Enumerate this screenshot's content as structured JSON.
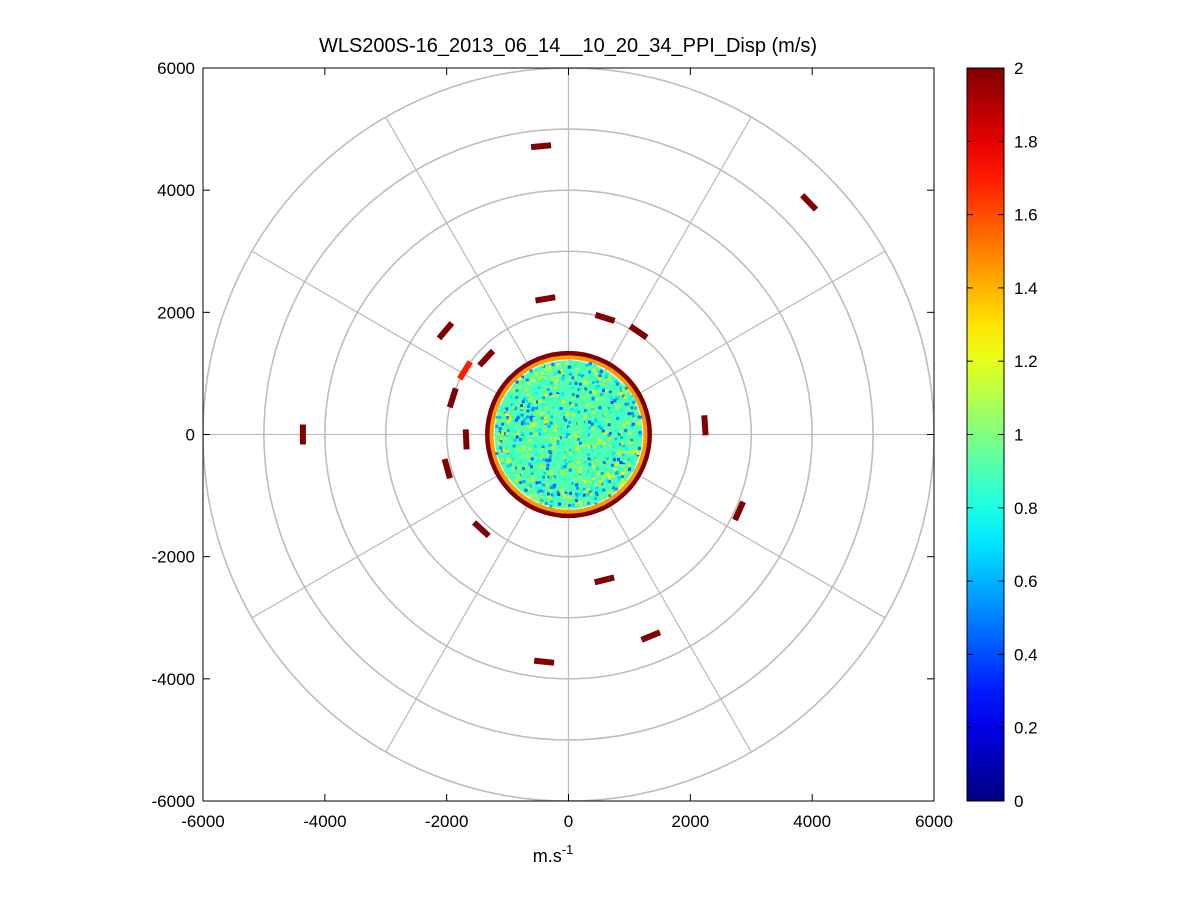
{
  "chart_data": {
    "type": "heatmap",
    "subtype": "polar-ppi",
    "title": "WLS200S-16_2013_06_14__10_20_34_PPI_Disp (m/s)",
    "xlabel": "m.s",
    "xlabel_superscript": "-1",
    "ylabel": "",
    "xlim": [
      -6000,
      6000
    ],
    "ylim": [
      -6000,
      6000
    ],
    "x_ticks": [
      "-6000",
      "-4000",
      "-2000",
      "0",
      "2000",
      "4000",
      "6000"
    ],
    "y_ticks": [
      "6000",
      "4000",
      "2000",
      "0",
      "-2000",
      "-4000",
      "-6000"
    ],
    "grid": true,
    "polar_grid": {
      "ring_radii": [
        1000,
        2000,
        3000,
        4000,
        5000,
        6000
      ],
      "spoke_angles_deg": [
        0,
        30,
        60,
        90,
        120,
        150,
        180,
        210,
        240,
        270,
        300,
        330
      ],
      "color": "#bebebe"
    },
    "colorbar": {
      "range": [
        0,
        2
      ],
      "ticks": [
        "0",
        "0.2",
        "0.4",
        "0.6",
        "0.8",
        "1",
        "1.2",
        "1.4",
        "1.6",
        "1.8",
        "2"
      ],
      "colormap": "jet",
      "placement": "right"
    },
    "data_disk": {
      "center": [
        0,
        0
      ],
      "radius": 1280,
      "typical_value": 0.9,
      "edge_value": 2.0,
      "min_value": 0.4,
      "max_value": 1.3
    },
    "outlier_segments": [
      {
        "x": -450,
        "y": 4720,
        "value": 2.0
      },
      {
        "x": 3950,
        "y": 3800,
        "value": 2.0
      },
      {
        "x": -380,
        "y": 2220,
        "value": 2.0
      },
      {
        "x": -2020,
        "y": 1700,
        "value": 2.0
      },
      {
        "x": 600,
        "y": 1910,
        "value": 2.0
      },
      {
        "x": 1150,
        "y": 1680,
        "value": 2.0
      },
      {
        "x": -1350,
        "y": 1250,
        "value": 2.0
      },
      {
        "x": -1700,
        "y": 1050,
        "value": 1.7
      },
      {
        "x": -1900,
        "y": 600,
        "value": 2.0
      },
      {
        "x": -4360,
        "y": 0,
        "value": 2.0
      },
      {
        "x": 2240,
        "y": 150,
        "value": 2.0
      },
      {
        "x": -1680,
        "y": -80,
        "value": 2.0
      },
      {
        "x": -1990,
        "y": -560,
        "value": 2.0
      },
      {
        "x": 2800,
        "y": -1250,
        "value": 2.0
      },
      {
        "x": -1430,
        "y": -1550,
        "value": 2.0
      },
      {
        "x": 590,
        "y": -2380,
        "value": 2.0
      },
      {
        "x": 1350,
        "y": -3300,
        "value": 2.0
      },
      {
        "x": -400,
        "y": -3720,
        "value": 2.0
      }
    ]
  }
}
